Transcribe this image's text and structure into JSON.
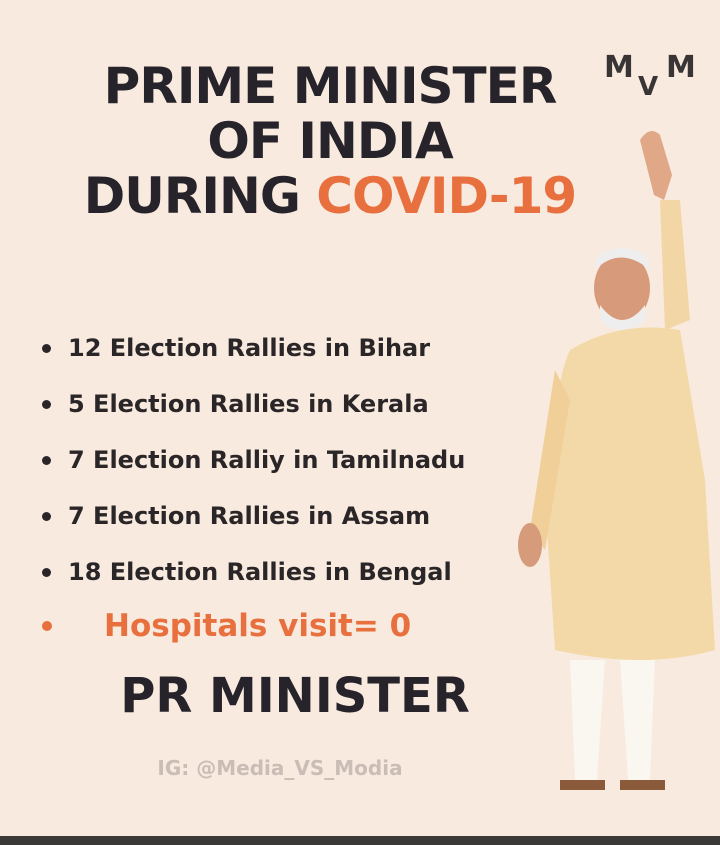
{
  "title": {
    "line1": "PRIME MINISTER",
    "line2": "OF INDIA",
    "line3": "DURING",
    "highlight": "COVID-19"
  },
  "logo": [
    "M",
    "V",
    "M"
  ],
  "bullets": [
    "12 Election Rallies in Bihar",
    "5 Election Rallies in Kerala",
    "7 Election Ralliy in Tamilnadu",
    "7 Election Rallies in Assam",
    "18 Election Rallies in Bengal"
  ],
  "highlight_bullet": "Hospitals visit= 0",
  "footer": "PR MINISTER",
  "credit": "IG: @Media_VS_Modia"
}
